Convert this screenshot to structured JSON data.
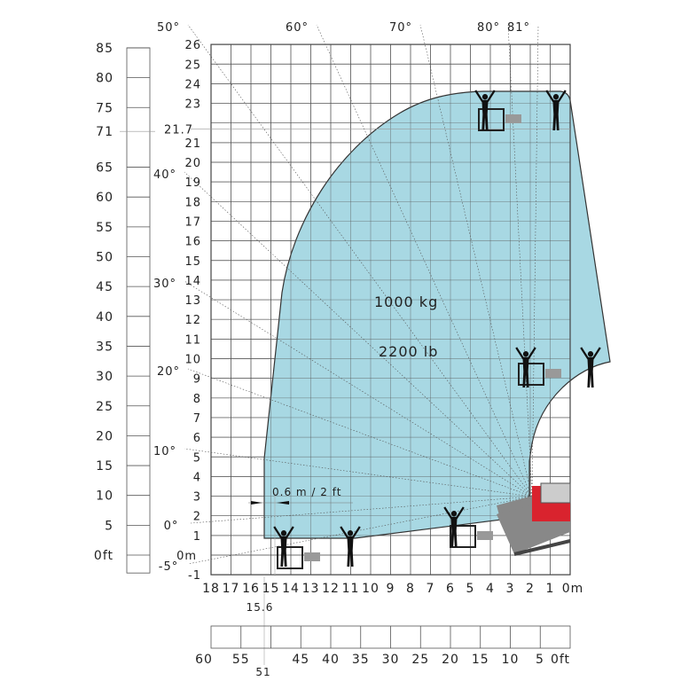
{
  "load": {
    "metric": "1000 kg",
    "imperial": "2200 lb"
  },
  "clearance_label": "0.6 m / 2 ft",
  "height_axis_m": [
    "26",
    "25",
    "24",
    "23",
    "21.7",
    "21",
    "20",
    "19",
    "18",
    "17",
    "16",
    "15",
    "14",
    "13",
    "12",
    "11",
    "10",
    "9",
    "8",
    "7",
    "6",
    "5",
    "4",
    "3",
    "2",
    "1",
    "0m",
    "-1"
  ],
  "height_values_m": [
    26,
    25,
    24,
    23,
    21.7,
    21,
    20,
    19,
    18,
    17,
    16,
    15,
    14,
    13,
    12,
    11,
    10,
    9,
    8,
    7,
    6,
    5,
    4,
    3,
    2,
    1,
    0,
    -1
  ],
  "reach_axis_m": [
    "18",
    "17",
    "16",
    "15",
    "14",
    "13",
    "12",
    "11",
    "10",
    "9",
    "8",
    "7",
    "6",
    "5",
    "4",
    "3",
    "2",
    "1",
    "0m"
  ],
  "reach_values_m": [
    18,
    17,
    16,
    15,
    14,
    13,
    12,
    11,
    10,
    9,
    8,
    7,
    6,
    5,
    4,
    3,
    2,
    1,
    0
  ],
  "height_axis_ft": [
    "85",
    "80",
    "75",
    "71",
    "65",
    "60",
    "55",
    "50",
    "45",
    "40",
    "35",
    "30",
    "25",
    "20",
    "15",
    "10",
    "5",
    "0ft"
  ],
  "height_values_ft": [
    85,
    80,
    75,
    71,
    65,
    60,
    55,
    50,
    45,
    40,
    35,
    30,
    25,
    20,
    15,
    10,
    5,
    0
  ],
  "reach_axis_ft": [
    "60",
    "55",
    "45",
    "40",
    "35",
    "30",
    "25",
    "20",
    "15",
    "10",
    "5",
    "0ft"
  ],
  "reach_values_ft": [
    60,
    55,
    45,
    40,
    35,
    30,
    25,
    20,
    15,
    10,
    5,
    0
  ],
  "max_reach": {
    "m": "15.6",
    "ft": "51"
  },
  "angles": [
    "50°",
    "60°",
    "70°",
    "80°",
    "81°",
    "40°",
    "30°",
    "20°",
    "10°",
    "0°",
    "-5°"
  ],
  "colors": {
    "envelope": "#a8d8e3",
    "machine": "#d9232e",
    "grid": "#555555"
  }
}
